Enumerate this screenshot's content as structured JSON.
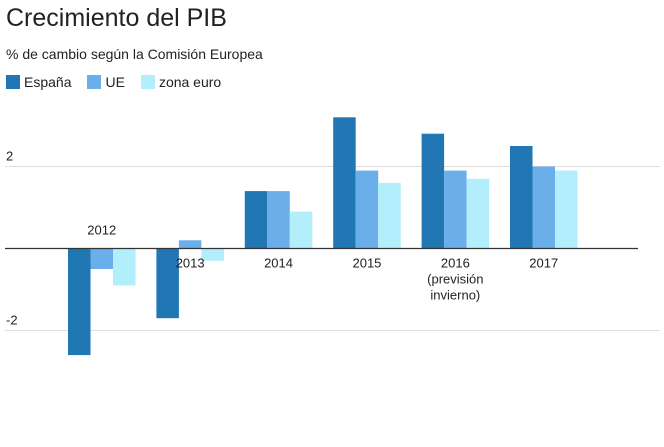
{
  "title": "Crecimiento del PIB",
  "subtitle": "% de cambio según la Comisión Europea",
  "colors": {
    "espana": "#2176b4",
    "ue": "#6aaeea",
    "zona_euro": "#b3eefc",
    "grid": "#dddddd",
    "axis": "#333333"
  },
  "chart_data": {
    "type": "bar",
    "title": "Crecimiento del PIB",
    "subtitle": "% de cambio según la Comisión Europea",
    "categories": [
      "2012",
      "2013",
      "2014",
      "2015",
      "2016 (previsión invierno)",
      "2017"
    ],
    "category_labels": [
      [
        "2012"
      ],
      [
        "2013"
      ],
      [
        "2014"
      ],
      [
        "2015"
      ],
      [
        "2016",
        "(previsión",
        "invierno)"
      ],
      [
        "2017"
      ]
    ],
    "series": [
      {
        "name": "España",
        "values": [
          -2.6,
          -1.7,
          1.4,
          3.2,
          2.8,
          2.5
        ]
      },
      {
        "name": "UE",
        "values": [
          -0.5,
          0.2,
          1.4,
          1.9,
          1.9,
          2.0
        ]
      },
      {
        "name": "zona euro",
        "values": [
          -0.9,
          -0.3,
          0.9,
          1.6,
          1.7,
          1.9
        ]
      }
    ],
    "yticks": [
      "2",
      "-2"
    ],
    "ytick_values": [
      2,
      -2
    ],
    "ylim": [
      -2.8,
      3.4
    ],
    "grid": true,
    "legend_position": "top-left",
    "xlabel": "",
    "ylabel": ""
  }
}
